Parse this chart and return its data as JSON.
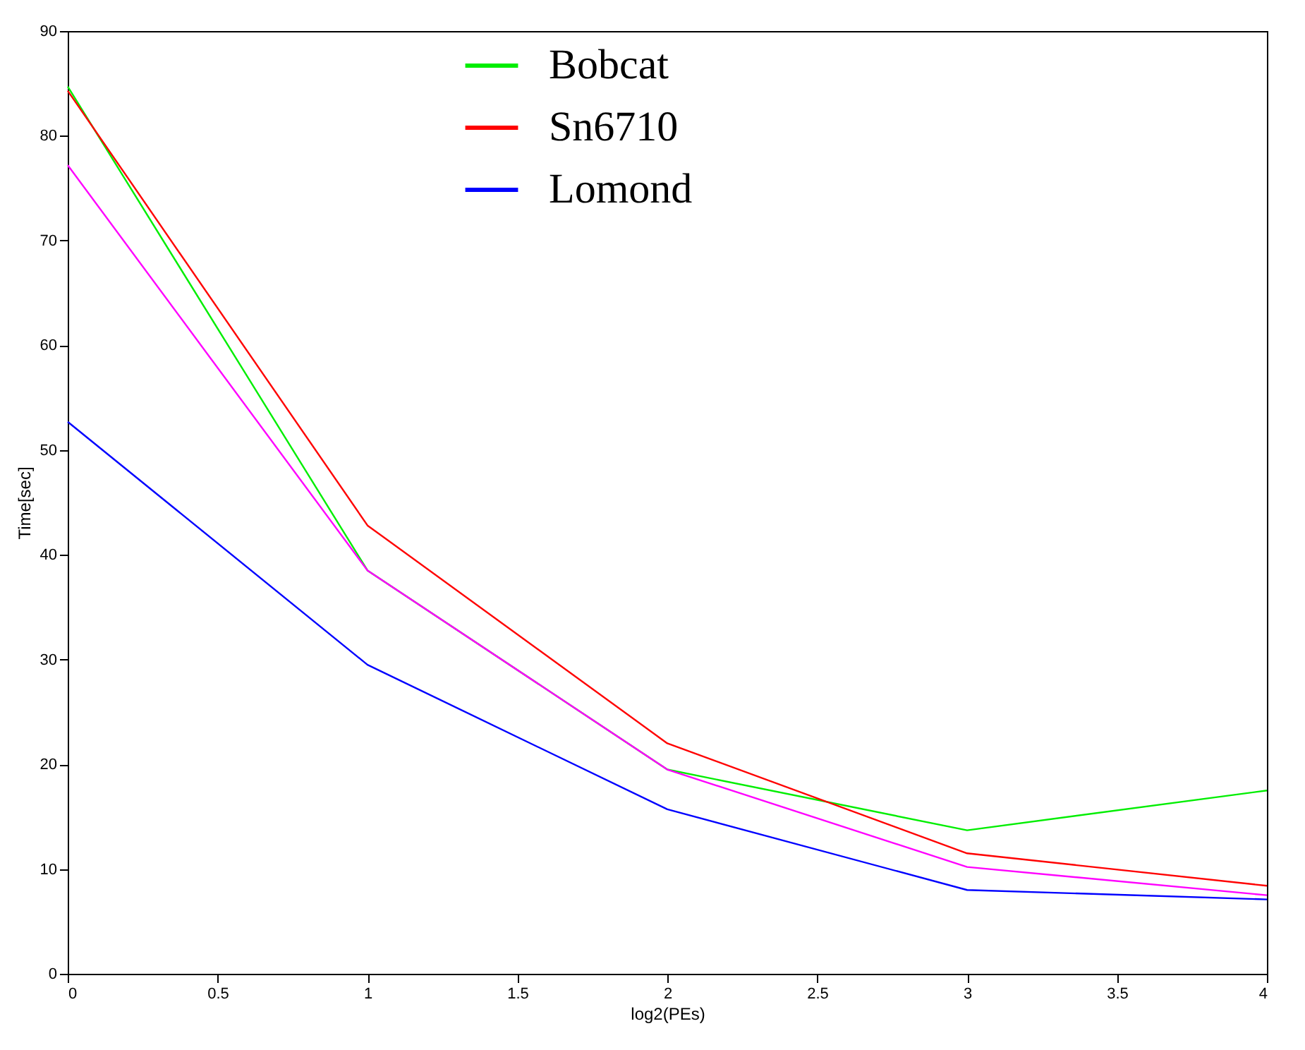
{
  "chart_data": {
    "type": "line",
    "xlabel": "log2(PEs)",
    "ylabel": "Time[sec]",
    "x": [
      0,
      1,
      2,
      3,
      4
    ],
    "series": [
      {
        "name": "Bobcat",
        "color": "#00ee00",
        "values": [
          84.7,
          38.5,
          19.5,
          13.7,
          17.5
        ]
      },
      {
        "name": "Sn6710",
        "color": "#ff0000",
        "values": [
          84.3,
          42.8,
          22.0,
          11.5,
          8.4
        ]
      },
      {
        "name": "Lomond",
        "color": "#0000ff",
        "values": [
          52.7,
          29.5,
          15.7,
          8.0,
          7.1
        ]
      },
      {
        "color": "#ff00ff",
        "values": [
          77.2,
          38.5,
          19.5,
          10.2,
          7.5
        ]
      }
    ],
    "xlim": [
      0,
      4
    ],
    "xticks": [
      0,
      0.5,
      1,
      1.5,
      2,
      2.5,
      3,
      3.5,
      4
    ],
    "ylim": [
      0,
      90
    ],
    "yticks": [
      0,
      10,
      20,
      30,
      40,
      50,
      60,
      70,
      80,
      90
    ],
    "grid": false,
    "legend": "top",
    "marker": "none",
    "line_style": "solid"
  }
}
